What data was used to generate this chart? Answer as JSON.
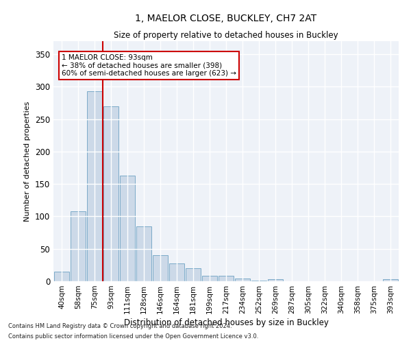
{
  "title": "1, MAELOR CLOSE, BUCKLEY, CH7 2AT",
  "subtitle": "Size of property relative to detached houses in Buckley",
  "xlabel": "Distribution of detached houses by size in Buckley",
  "ylabel": "Number of detached properties",
  "bar_color": "#ccd9e8",
  "bar_edge_color": "#7aaac8",
  "bar_edge_width": 0.7,
  "background_color": "#eef2f8",
  "grid_color": "#ffffff",
  "categories": [
    "40sqm",
    "58sqm",
    "75sqm",
    "93sqm",
    "111sqm",
    "128sqm",
    "146sqm",
    "164sqm",
    "181sqm",
    "199sqm",
    "217sqm",
    "234sqm",
    "252sqm",
    "269sqm",
    "287sqm",
    "305sqm",
    "322sqm",
    "340sqm",
    "358sqm",
    "375sqm",
    "393sqm"
  ],
  "values": [
    15,
    108,
    293,
    270,
    163,
    85,
    40,
    27,
    20,
    8,
    8,
    4,
    1,
    3,
    0,
    0,
    0,
    0,
    0,
    0,
    3
  ],
  "red_line_index": 3,
  "red_line_color": "#cc0000",
  "annotation_text": "1 MAELOR CLOSE: 93sqm\n← 38% of detached houses are smaller (398)\n60% of semi-detached houses are larger (623) →",
  "footnote1": "Contains HM Land Registry data © Crown copyright and database right 2024.",
  "footnote2": "Contains public sector information licensed under the Open Government Licence v3.0.",
  "ylim": [
    0,
    370
  ],
  "yticks": [
    0,
    50,
    100,
    150,
    200,
    250,
    300,
    350
  ]
}
